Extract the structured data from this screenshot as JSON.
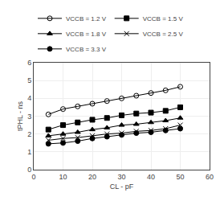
{
  "chart_data": {
    "type": "line",
    "xlabel": "CL - pF",
    "ylabel": "tPHL - ns",
    "x": [
      5,
      10,
      15,
      20,
      25,
      30,
      35,
      40,
      45,
      50
    ],
    "series": [
      {
        "name": "VCCB = 1.2 V",
        "color": "black",
        "marker": "circle-open",
        "line_style": "solid",
        "values": [
          3.1,
          3.4,
          3.55,
          3.7,
          3.85,
          4.0,
          4.15,
          4.3,
          4.45,
          4.65
        ]
      },
      {
        "name": "VCCB = 1.5 V",
        "color": "black",
        "marker": "square",
        "line_style": "solid",
        "values": [
          2.25,
          2.5,
          2.65,
          2.8,
          2.9,
          3.05,
          3.15,
          3.2,
          3.3,
          3.5
        ]
      },
      {
        "name": "VCCB = 1.8 V",
        "color": "black",
        "marker": "triangle-up",
        "line_style": "solid",
        "values": [
          1.9,
          2.0,
          2.1,
          2.25,
          2.35,
          2.5,
          2.55,
          2.65,
          2.75,
          2.9
        ]
      },
      {
        "name": "VCCB = 2.5 V",
        "color": "black",
        "marker": "x",
        "line_style": "solid",
        "values": [
          1.65,
          1.75,
          1.8,
          1.9,
          2.0,
          2.05,
          2.15,
          2.2,
          2.3,
          2.5
        ]
      },
      {
        "name": "VCCB = 3.3 V",
        "color": "black",
        "marker": "circle",
        "line_style": "solid",
        "values": [
          1.45,
          1.5,
          1.6,
          1.75,
          1.85,
          1.95,
          2.05,
          2.1,
          2.2,
          2.3
        ]
      }
    ],
    "xlim": [
      0,
      60
    ],
    "ylim": [
      0,
      6
    ],
    "xticks": [
      0,
      10,
      20,
      30,
      40,
      50,
      60
    ],
    "yticks": [
      0,
      1,
      2,
      3,
      4,
      5,
      6
    ],
    "grid": true,
    "legend": "upper left"
  }
}
